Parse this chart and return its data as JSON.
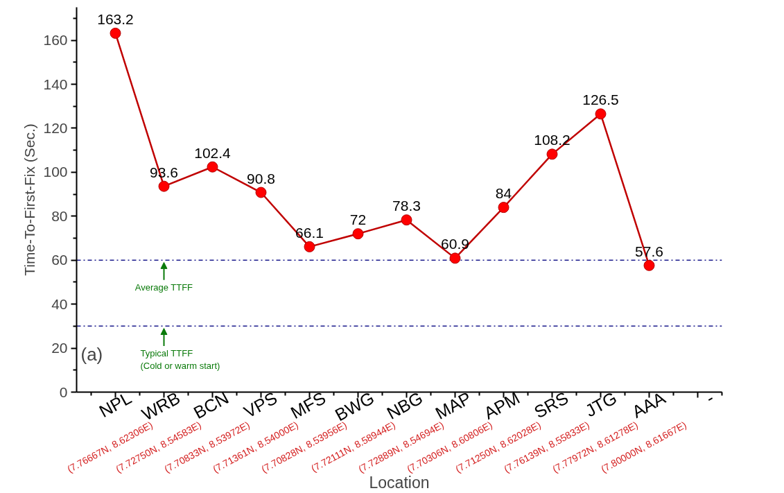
{
  "chart_data": {
    "type": "line",
    "xlabel": "Location",
    "ylabel": "Time-To-First-Fix (Sec.)",
    "categories": [
      "NPL\n(7.76667N, 8.62306E)",
      "WRB\n(7.72750N, 8.54583E)",
      "BCN\n(7.70833N, 8.53972E)",
      "VPS\n(7.71361N, 8.54000E)",
      "MFS\n(7.70828N, 8.53956E)",
      "BWG\n(7.72111N, 8.58944E)",
      "NBG\n(7.72889N, 8.54694E)",
      "MAP\n(7.70306N, 8.60806E)",
      "APM\n(7.71250N, 8.62028E)",
      "SRS\n(7.76139N, 8.55833E)",
      "JTG\n(7.77972N, 8.61278E)",
      "AAA\n(7.80000N, 8.61667E)",
      "-"
    ],
    "series": [
      {
        "color": "#c00000",
        "values": [
          163.2,
          93.6,
          102.4,
          90.8,
          66.1,
          72,
          78.3,
          60.9,
          84,
          108.2,
          126.5,
          57.6,
          null
        ]
      }
    ],
    "ylim": [
      0,
      175
    ],
    "yticks": [
      0,
      20,
      40,
      60,
      80,
      100,
      120,
      140,
      160
    ],
    "marker": "circle",
    "line_style": "solid",
    "data_labels": true,
    "grid": false,
    "ref_lines": [
      {
        "axis": "y",
        "value": 60,
        "label": "Average TTFF",
        "color": "#1a1a8c",
        "line_style": "dashdot"
      },
      {
        "axis": "y",
        "value": 30,
        "label": "Typical TTFF\n(Cold or warm start)",
        "color": "#1a1a8c",
        "line_style": "dashdot"
      }
    ],
    "annotations": [
      "(a)"
    ]
  }
}
